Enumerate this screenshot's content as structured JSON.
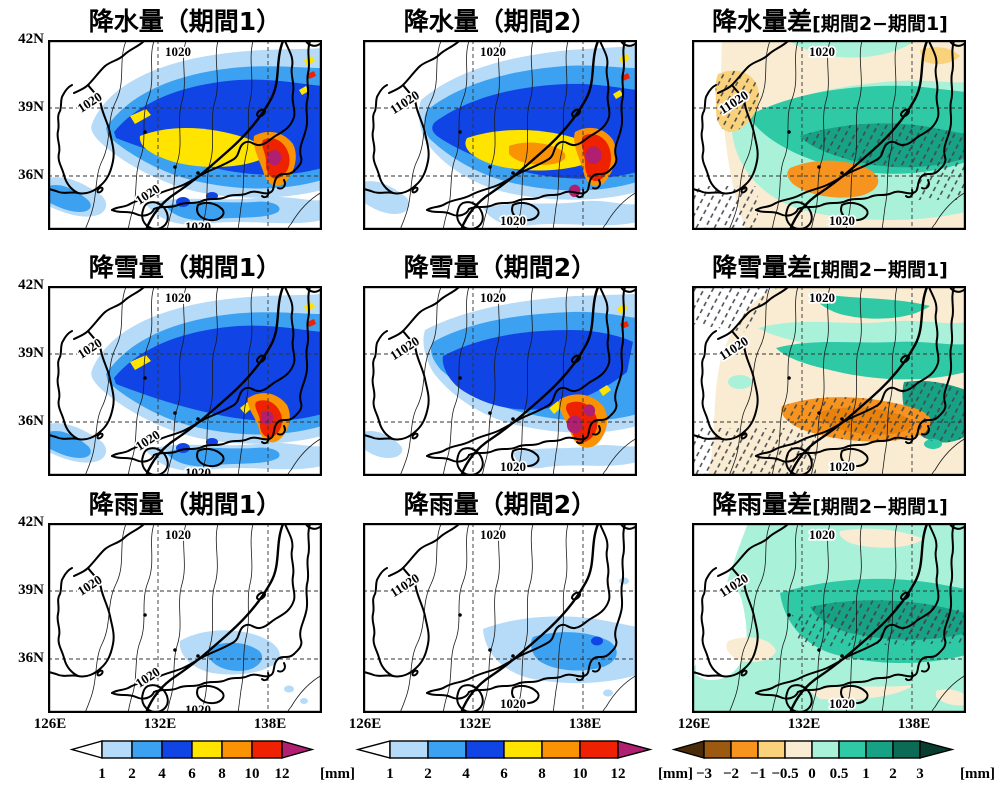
{
  "panels": [
    {
      "title": "降水量（期間1）"
    },
    {
      "title": "降水量（期間2）"
    },
    {
      "title": "降水量差",
      "subtitle": "[期間2−期間1]"
    },
    {
      "title": "降雪量（期間1）"
    },
    {
      "title": "降雪量（期間2）"
    },
    {
      "title": "降雪量差",
      "subtitle": "[期間2−期間1]"
    },
    {
      "title": "降雨量（期間1）"
    },
    {
      "title": "降雨量（期間2）"
    },
    {
      "title": "降雨量差",
      "subtitle": "[期間2−期間1]"
    }
  ],
  "axes": {
    "lat": [
      "42N",
      "39N",
      "36N"
    ],
    "lon": [
      "126E",
      "132E",
      "138E"
    ]
  },
  "contours": {
    "label": "1020",
    "label_overlapped": "11020"
  },
  "colorbars": {
    "precipitation": {
      "unit": "[mm]",
      "ticks": [
        "1",
        "2",
        "4",
        "6",
        "8",
        "10",
        "12"
      ],
      "box_colors": [
        "#b5dbf8",
        "#3da1f2",
        "#1144e4",
        "#ffe400",
        "#fa9303",
        "#ee2200"
      ],
      "below_min_color": "#ffffff",
      "above_max_color": "#b01f70"
    },
    "difference": {
      "unit": "[mm]",
      "ticks": [
        "−3",
        "−2",
        "−1",
        "−0.5",
        "0",
        "0.5",
        "1",
        "2",
        "3"
      ],
      "box_colors": [
        "#9b5a10",
        "#f79420",
        "#fbd27c",
        "#f9ecd2",
        "#a9f2d9",
        "#2fc9a5",
        "#17a185",
        "#0b6b55"
      ],
      "below_min_color": "#4a2c08",
      "above_max_color": "#083d30"
    }
  }
}
